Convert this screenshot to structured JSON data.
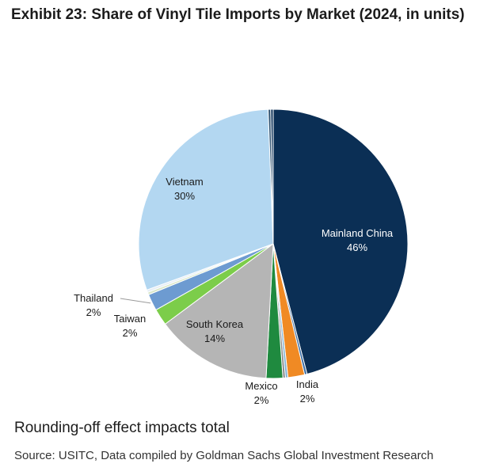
{
  "title": "Exhibit 23: Share of Vinyl Tile Imports by Market (2024, in units)",
  "note": "Rounding-off effect impacts total",
  "source": "Source: USITC, Data compiled by Goldman Sachs Global Investment Research",
  "chart_data": {
    "type": "pie",
    "title": "Exhibit 23: Share of Vinyl Tile Imports by Market (2024, in units)",
    "slices": [
      {
        "name": "Mainland China",
        "value": 46,
        "display": "46%",
        "color": "#0b2f55",
        "label_color": "#ffffff"
      },
      {
        "name": "",
        "value": 0.3,
        "display": "",
        "color": "#3a6ea5"
      },
      {
        "name": "India",
        "value": 2,
        "display": "2%",
        "color": "#f08a24"
      },
      {
        "name": "",
        "value": 0.3,
        "display": "",
        "color": "#7fb2d6"
      },
      {
        "name": "",
        "value": 0.3,
        "display": "",
        "color": "#8a8a8a"
      },
      {
        "name": "Mexico",
        "value": 2,
        "display": "2%",
        "color": "#1f8a3f"
      },
      {
        "name": "South Korea",
        "value": 14,
        "display": "14%",
        "color": "#b5b5b5"
      },
      {
        "name": "Taiwan",
        "value": 2,
        "display": "2%",
        "color": "#7ccd4a"
      },
      {
        "name": "Thailand",
        "value": 2,
        "display": "2%",
        "color": "#6d9bd1"
      },
      {
        "name": "",
        "value": 0.3,
        "display": "",
        "color": "#d9e7c8"
      },
      {
        "name": "",
        "value": 0.3,
        "display": "",
        "color": "#e6eef6"
      },
      {
        "name": "Vietnam",
        "value": 30,
        "display": "30%",
        "color": "#b3d7f1"
      },
      {
        "name": "",
        "value": 0.3,
        "display": "",
        "color": "#2b4f6e"
      },
      {
        "name": "",
        "value": 0.3,
        "display": "",
        "color": "#163a5f"
      }
    ]
  }
}
